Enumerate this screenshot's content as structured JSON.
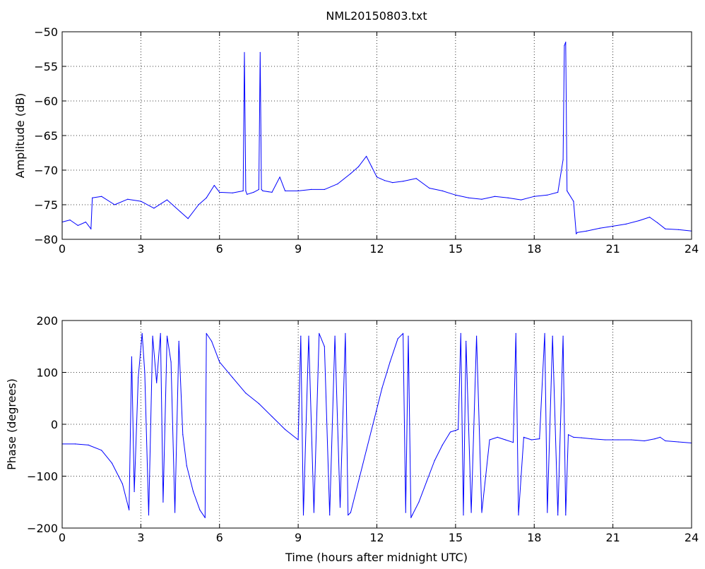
{
  "window": {
    "title": "NML20150803.txt"
  },
  "chart_data": [
    {
      "type": "line",
      "title": "NML20150803.txt",
      "xlabel": "",
      "ylabel": "Amplitude (dB)",
      "xlim": [
        0,
        24
      ],
      "ylim": [
        -80,
        -50
      ],
      "xticks": [
        "0",
        "3",
        "6",
        "9",
        "12",
        "15",
        "18",
        "21",
        "24"
      ],
      "yticks": [
        "−50",
        "−55",
        "−60",
        "−65",
        "−70",
        "−75",
        "−80"
      ],
      "grid": true,
      "color": "#0000ff",
      "series": [
        {
          "x": [
            0,
            0.3,
            0.6,
            0.9,
            1.1,
            1.15,
            1.5,
            2,
            2.5,
            3,
            3.5,
            4,
            4.5,
            4.8,
            5.2,
            5.5,
            5.8,
            6,
            6.5,
            6.9,
            6.95,
            7.0,
            7.05,
            7.3,
            7.5,
            7.55,
            7.6,
            7.65,
            8,
            8.3,
            8.5,
            9,
            9.5,
            10,
            10.5,
            11,
            11.3,
            11.6,
            11.8,
            12,
            12.3,
            12.6,
            13,
            13.5,
            14,
            14.5,
            15,
            15.5,
            16,
            16.5,
            17,
            17.5,
            18,
            18.5,
            18.9,
            19.1,
            19.15,
            19.2,
            19.25,
            19.3,
            19.5,
            19.6,
            19.65,
            20,
            20.5,
            21,
            21.5,
            22,
            22.4,
            22.7,
            23,
            23.5,
            24
          ],
          "y": [
            -77.5,
            -77.2,
            -78,
            -77.5,
            -78.5,
            -74,
            -73.8,
            -75,
            -74.2,
            -74.5,
            -75.5,
            -74.3,
            -76,
            -77,
            -75,
            -74,
            -72.2,
            -73.2,
            -73.3,
            -73,
            -53,
            -73,
            -73.5,
            -73.2,
            -72.8,
            -53,
            -72.8,
            -73,
            -73.2,
            -71,
            -73,
            -73,
            -72.8,
            -72.8,
            -72,
            -70.5,
            -69.5,
            -68,
            -69.5,
            -71,
            -71.5,
            -71.8,
            -71.6,
            -71.2,
            -72.6,
            -73,
            -73.6,
            -74,
            -74.2,
            -73.8,
            -74,
            -74.3,
            -73.8,
            -73.6,
            -73.2,
            -68.5,
            -52,
            -51.5,
            -73,
            -73.3,
            -74.5,
            -79.2,
            -79,
            -78.8,
            -78.4,
            -78.1,
            -77.8,
            -77.3,
            -76.8,
            -77.6,
            -78.5,
            -78.6,
            -78.8
          ]
        }
      ]
    },
    {
      "type": "line",
      "title": "",
      "xlabel": "Time (hours after midnight UTC)",
      "ylabel": "Phase (degrees)",
      "xlim": [
        0,
        24
      ],
      "ylim": [
        -200,
        200
      ],
      "xticks": [
        "0",
        "3",
        "6",
        "9",
        "12",
        "15",
        "18",
        "21",
        "24"
      ],
      "yticks": [
        "200",
        "100",
        "0",
        "−100",
        "−200"
      ],
      "grid": true,
      "color": "#0000ff",
      "series": [
        {
          "x": [
            0,
            0.5,
            1.0,
            1.5,
            1.9,
            2.3,
            2.55,
            2.65,
            2.75,
            2.9,
            3.05,
            3.15,
            3.3,
            3.45,
            3.6,
            3.75,
            3.85,
            4.0,
            4.15,
            4.3,
            4.45,
            4.6,
            4.75,
            5.0,
            5.25,
            5.45,
            5.5,
            5.7,
            6.0,
            6.5,
            7.0,
            7.5,
            8.0,
            8.5,
            9.0,
            9.1,
            9.2,
            9.4,
            9.6,
            9.8,
            10.0,
            10.2,
            10.4,
            10.6,
            10.8,
            10.9,
            11.0,
            11.3,
            11.6,
            11.9,
            12.2,
            12.5,
            12.8,
            13.0,
            13.1,
            13.2,
            13.3,
            13.35,
            13.6,
            13.9,
            14.2,
            14.5,
            14.8,
            15.1,
            15.2,
            15.3,
            15.4,
            15.6,
            15.8,
            16.0,
            16.3,
            16.6,
            16.9,
            17.2,
            17.3,
            17.4,
            17.6,
            17.9,
            18.2,
            18.4,
            18.5,
            18.7,
            18.9,
            19.1,
            19.2,
            19.3,
            19.5,
            19.8,
            20.2,
            20.7,
            21.2,
            21.7,
            22.2,
            22.6,
            22.8,
            23.0,
            23.5,
            24.0
          ],
          "y": [
            -38,
            -38,
            -40,
            -50,
            -75,
            -115,
            -165,
            130,
            -130,
            90,
            175,
            100,
            -175,
            170,
            80,
            175,
            -150,
            170,
            120,
            -170,
            160,
            -20,
            -80,
            -130,
            -165,
            -180,
            175,
            160,
            120,
            90,
            60,
            40,
            15,
            -10,
            -30,
            170,
            -175,
            170,
            -170,
            175,
            150,
            -175,
            170,
            -160,
            175,
            -175,
            -170,
            -110,
            -50,
            10,
            70,
            120,
            165,
            175,
            -170,
            170,
            -180,
            -175,
            -150,
            -110,
            -70,
            -40,
            -15,
            -10,
            175,
            -175,
            160,
            -170,
            170,
            -170,
            -30,
            -25,
            -30,
            -35,
            175,
            -175,
            -25,
            -30,
            -28,
            175,
            -170,
            170,
            -175,
            170,
            -175,
            -20,
            -25,
            -26,
            -28,
            -30,
            -30,
            -30,
            -32,
            -28,
            -25,
            -32,
            -34,
            -36
          ]
        }
      ]
    }
  ]
}
